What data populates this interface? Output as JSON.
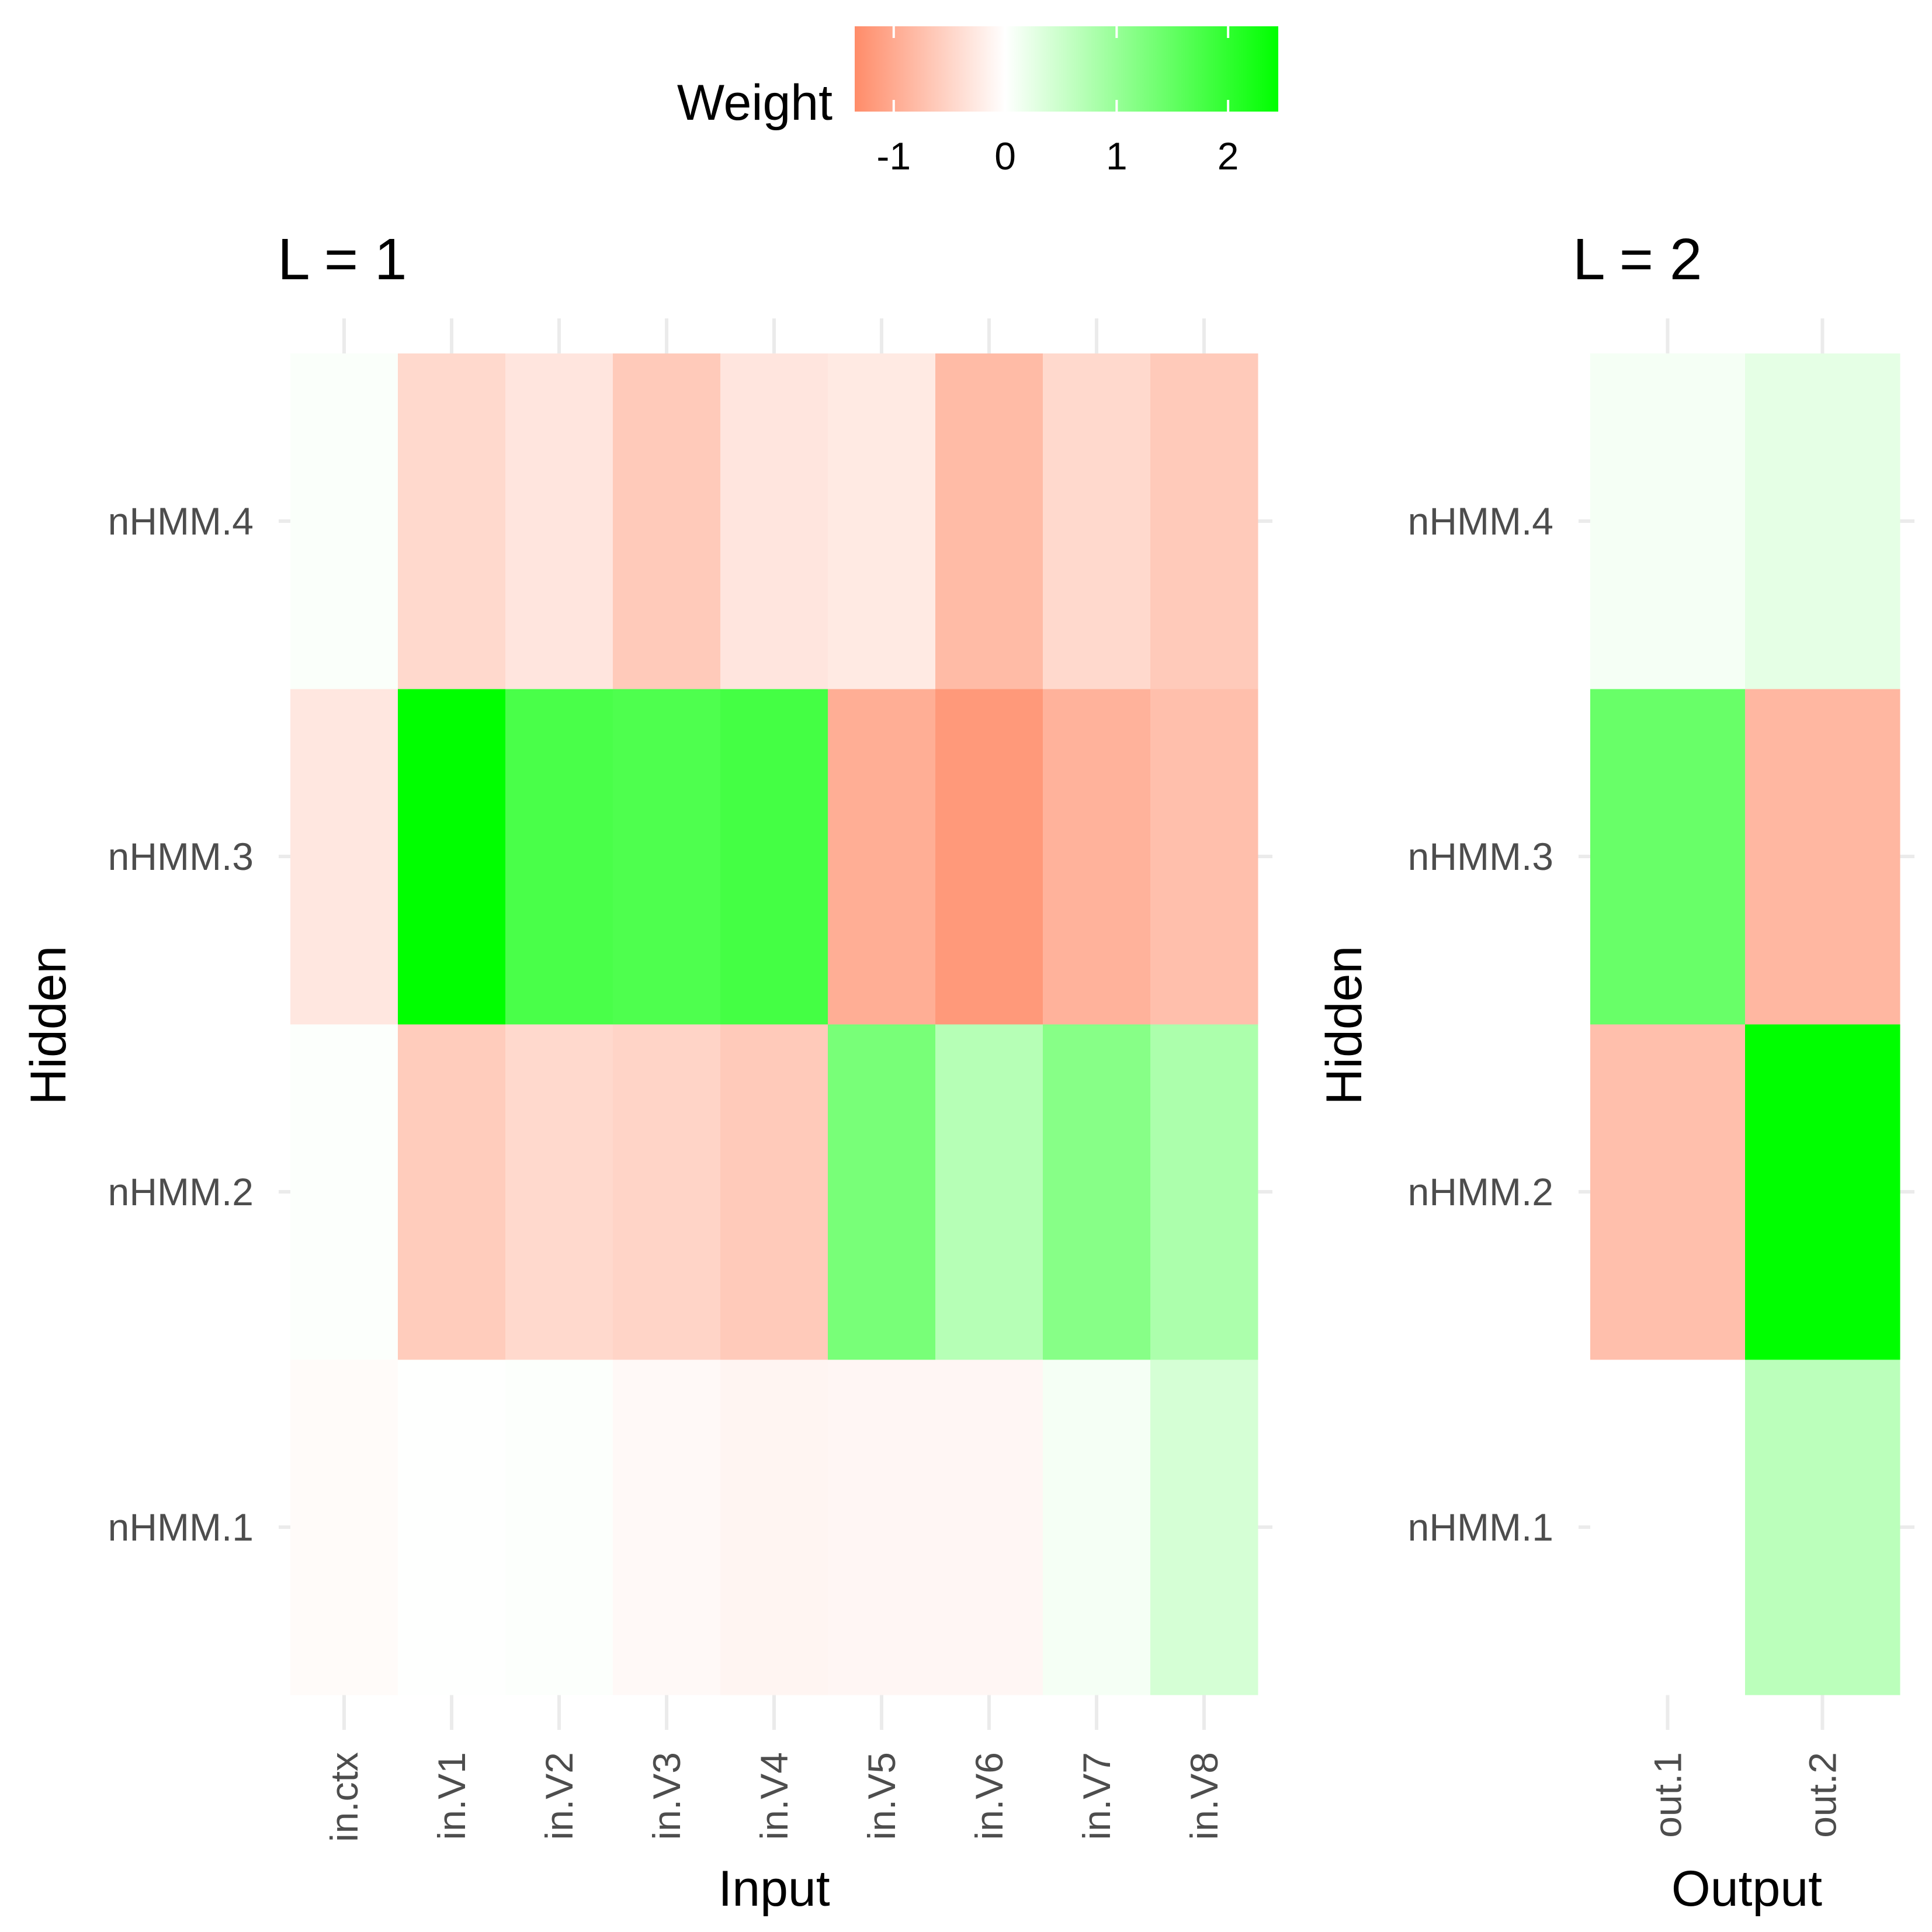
{
  "chart_data": {
    "type": "heatmap",
    "legend": {
      "title": "Weight",
      "placement": "top",
      "ticks": [
        -1,
        0,
        1,
        2
      ],
      "range": [
        -1.35,
        2.45
      ],
      "colors": {
        "low": "#ff8c69",
        "mid": "#ffffff",
        "high": "#00ff00"
      }
    },
    "panels": [
      {
        "title": "L = 1",
        "xlabel": "Input",
        "ylabel": "Hidden",
        "x": [
          "in.ctx",
          "in.V1",
          "in.V2",
          "in.V3",
          "in.V4",
          "in.V5",
          "in.V6",
          "in.V7",
          "in.V8"
        ],
        "y": [
          "nHMM.1",
          "nHMM.2",
          "nHMM.3",
          "nHMM.4"
        ],
        "values": [
          [
            -0.05,
            0.01,
            0.03,
            -0.07,
            -0.12,
            -0.1,
            -0.1,
            0.1,
            0.4
          ],
          [
            0.03,
            -0.6,
            -0.45,
            -0.5,
            -0.62,
            1.3,
            0.7,
            1.15,
            0.8
          ],
          [
            -0.28,
            2.45,
            1.75,
            1.7,
            1.8,
            -0.95,
            -1.2,
            -0.9,
            -0.75
          ],
          [
            0.05,
            -0.45,
            -0.3,
            -0.62,
            -0.3,
            -0.25,
            -0.8,
            -0.45,
            -0.62
          ]
        ]
      },
      {
        "title": "L = 2",
        "xlabel": "Output",
        "ylabel": "Hidden",
        "x": [
          "out.1",
          "out.2"
        ],
        "y": [
          "nHMM.1",
          "nHMM.2",
          "nHMM.3",
          "nHMM.4"
        ],
        "values": [
          [
            0.0,
            0.65
          ],
          [
            -0.75,
            2.45
          ],
          [
            1.45,
            -0.85
          ],
          [
            0.1,
            0.25
          ]
        ]
      }
    ]
  }
}
